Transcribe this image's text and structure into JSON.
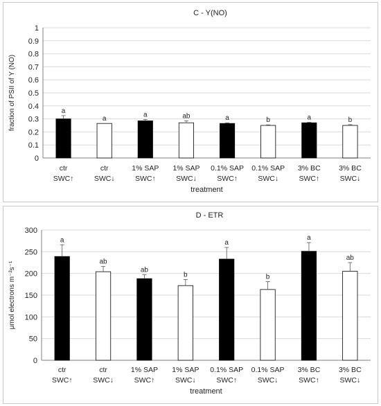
{
  "chart_data": [
    {
      "type": "bar",
      "title": "C - Y(NO)",
      "xlabel": "treatment",
      "ylabel": "fraction of PSII of Y (NO)",
      "ylim": [
        0,
        1
      ],
      "yticks": [
        "0",
        "0.1",
        "0.2",
        "0.3",
        "0.4",
        "0.5",
        "0.6",
        "0.7",
        "0.8",
        "0.9",
        "1"
      ],
      "ytick_values": [
        0,
        0.1,
        0.2,
        0.3,
        0.4,
        0.5,
        0.6,
        0.7,
        0.8,
        0.9,
        1
      ],
      "grid": true,
      "categories": [
        [
          "ctr",
          "SWC↑"
        ],
        [
          "ctr",
          "SWC↓"
        ],
        [
          "1% SAP",
          "SWC↑"
        ],
        [
          "1% SAP",
          "SWC↓"
        ],
        [
          "0.1% SAP",
          "SWC↑"
        ],
        [
          "0.1% SAP",
          "SWC↓"
        ],
        [
          "3% BC",
          "SWC↑"
        ],
        [
          "3% BC",
          "SWC↓"
        ]
      ],
      "values": [
        0.3,
        0.265,
        0.285,
        0.27,
        0.265,
        0.25,
        0.27,
        0.25
      ],
      "errors": [
        0.025,
        0.0,
        0.01,
        0.015,
        0.005,
        0.004,
        0.004,
        0.006
      ],
      "fills": [
        "#000000",
        "#ffffff",
        "#000000",
        "#ffffff",
        "#000000",
        "#ffffff",
        "#000000",
        "#ffffff"
      ],
      "letters": [
        "a",
        "a",
        "a",
        "ab",
        "a",
        "b",
        "a",
        "b"
      ]
    },
    {
      "type": "bar",
      "title": "D - ETR",
      "xlabel": "treatment",
      "ylabel": "μmol electrons m⁻²s⁻¹",
      "ylim": [
        0,
        300
      ],
      "yticks": [
        "0",
        "50",
        "100",
        "150",
        "200",
        "250",
        "300"
      ],
      "ytick_values": [
        0,
        50,
        100,
        150,
        200,
        250,
        300
      ],
      "grid": true,
      "categories": [
        [
          "ctr",
          "SWC↑"
        ],
        [
          "ctr",
          "SWC↓"
        ],
        [
          "1% SAP",
          "SWC↑"
        ],
        [
          "1% SAP",
          "SWC↓"
        ],
        [
          "0.1% SAP",
          "SWC↑"
        ],
        [
          "0.1% SAP",
          "SWC↓"
        ],
        [
          "3% BC",
          "SWC↑"
        ],
        [
          "3% BC",
          "SWC↓"
        ]
      ],
      "values": [
        239,
        204,
        188,
        172,
        233,
        163,
        251,
        205
      ],
      "errors": [
        27,
        12,
        9,
        14,
        27,
        18,
        20,
        20
      ],
      "fills": [
        "#000000",
        "#ffffff",
        "#000000",
        "#ffffff",
        "#000000",
        "#ffffff",
        "#000000",
        "#ffffff"
      ],
      "letters": [
        "a",
        "ab",
        "ab",
        "b",
        "a",
        "b",
        "a",
        "ab"
      ]
    }
  ]
}
